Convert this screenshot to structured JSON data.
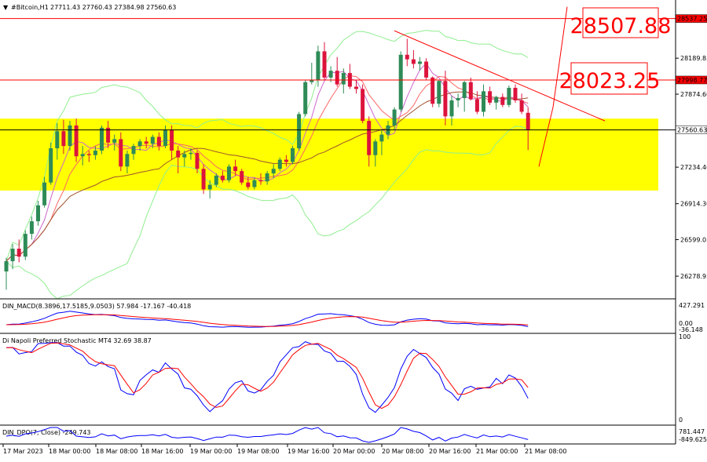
{
  "header": {
    "symbol": "#Bitcoin,H1",
    "ohlc": "27711.43 27760.43 27384.98 27560.63"
  },
  "annotations": {
    "level_high": "28507.88",
    "level_mid": "28023.25"
  },
  "price_axis": {
    "tick_labels": [
      "28189.85",
      "27874.60",
      "27234.40",
      "26914.30",
      "26599.05",
      "26278.95"
    ],
    "tags": [
      {
        "label": "28537.25",
        "price": 28537.25,
        "color": "#ff0000"
      },
      {
        "label": "27998.77",
        "price": 27998.77,
        "color": "#ff0000"
      },
      {
        "label": "27560.63",
        "price": 27560.63,
        "color": "#000000"
      }
    ]
  },
  "time_axis": {
    "tick_labels": [
      "17 Mar 2023",
      "18 Mar 00:00",
      "18 Mar 08:00",
      "18 Mar 16:00",
      "19 Mar 00:00",
      "19 Mar 08:00",
      "19 Mar 16:00",
      "20 Mar 00:00",
      "20 Mar 08:00",
      "20 Mar 16:00",
      "21 Mar 00:00",
      "21 Mar 08:00"
    ]
  },
  "indicators": {
    "macd": {
      "label": "DIN_MACD(8.3896,17.5185,9.0503) 57.984 -17.167 -40.418",
      "scale": [
        "427.291",
        "0.00",
        "-36.148"
      ]
    },
    "stochastic": {
      "label": "Di Napoli Preferred Stochastic MT4 32.69 38.87",
      "scale": [
        "100",
        "0"
      ]
    },
    "dpo": {
      "label": "DIN_DPO(7, Close) -249.743",
      "scale": [
        "781.447",
        "-849.625"
      ]
    }
  },
  "colors": {
    "up_candle": "#2e8b57",
    "down_candle": "#dc143c",
    "zone": "#ffff00",
    "bollinger": "#90ee90",
    "ma_fast": "#ff6666",
    "ma_slow": "#a0522d",
    "ma_purple": "#cc66cc",
    "resistance": "#ff0000",
    "macd_line": "#0000ff",
    "signal_line": "#ff0000"
  },
  "chart_data": {
    "type": "candlestick",
    "y_range": [
      26080,
      28700
    ],
    "zone": {
      "low": 27030,
      "high": 27660
    },
    "candles": [
      [
        26320,
        26440,
        26160,
        26410
      ],
      [
        26410,
        26560,
        26340,
        26520
      ],
      [
        26520,
        26600,
        26400,
        26450
      ],
      [
        26450,
        26680,
        26420,
        26650
      ],
      [
        26650,
        26800,
        26600,
        26760
      ],
      [
        26760,
        26940,
        26720,
        26900
      ],
      [
        26900,
        27150,
        26880,
        27100
      ],
      [
        27100,
        27450,
        27080,
        27400
      ],
      [
        27400,
        27620,
        27300,
        27550
      ],
      [
        27550,
        27650,
        27350,
        27420
      ],
      [
        27420,
        27640,
        27380,
        27600
      ],
      [
        27600,
        27660,
        27280,
        27330
      ],
      [
        27330,
        27420,
        27250,
        27350
      ],
      [
        27350,
        27380,
        27280,
        27340
      ],
      [
        27340,
        27420,
        27300,
        27380
      ],
      [
        27380,
        27600,
        27350,
        27580
      ],
      [
        27580,
        27640,
        27400,
        27450
      ],
      [
        27450,
        27520,
        27380,
        27480
      ],
      [
        27480,
        27540,
        27200,
        27240
      ],
      [
        27240,
        27380,
        27180,
        27350
      ],
      [
        27350,
        27440,
        27300,
        27420
      ],
      [
        27420,
        27480,
        27380,
        27460
      ],
      [
        27460,
        27500,
        27400,
        27440
      ],
      [
        27440,
        27520,
        27400,
        27500
      ],
      [
        27500,
        27540,
        27380,
        27420
      ],
      [
        27420,
        27600,
        27400,
        27560
      ],
      [
        27560,
        27600,
        27300,
        27380
      ],
      [
        27380,
        27420,
        27180,
        27320
      ],
      [
        27320,
        27380,
        27240,
        27350
      ],
      [
        27350,
        27400,
        27300,
        27360
      ],
      [
        27360,
        27380,
        27180,
        27220
      ],
      [
        27220,
        27260,
        27000,
        27040
      ],
      [
        27040,
        27120,
        26960,
        27080
      ],
      [
        27080,
        27180,
        27060,
        27160
      ],
      [
        27160,
        27200,
        27100,
        27120
      ],
      [
        27120,
        27260,
        27100,
        27240
      ],
      [
        27240,
        27300,
        27160,
        27200
      ],
      [
        27200,
        27220,
        27080,
        27100
      ],
      [
        27100,
        27150,
        27040,
        27060
      ],
      [
        27060,
        27140,
        27040,
        27120
      ],
      [
        27120,
        27180,
        27080,
        27110
      ],
      [
        27110,
        27200,
        27080,
        27180
      ],
      [
        27180,
        27260,
        27140,
        27220
      ],
      [
        27220,
        27320,
        27200,
        27300
      ],
      [
        27300,
        27340,
        27240,
        27280
      ],
      [
        27280,
        27420,
        27260,
        27400
      ],
      [
        27400,
        27720,
        27380,
        27700
      ],
      [
        27700,
        28000,
        27680,
        27980
      ],
      [
        27980,
        28150,
        27960,
        28000
      ],
      [
        28000,
        28300,
        27940,
        28250
      ],
      [
        28250,
        28330,
        28000,
        28020
      ],
      [
        28020,
        28120,
        27980,
        28080
      ],
      [
        28080,
        28200,
        27940,
        27960
      ],
      [
        27960,
        28100,
        27880,
        28060
      ],
      [
        28060,
        28140,
        27920,
        27940
      ],
      [
        27940,
        28000,
        27880,
        27920
      ],
      [
        27920,
        27960,
        27620,
        27640
      ],
      [
        27640,
        27680,
        27240,
        27340
      ],
      [
        27340,
        27480,
        27240,
        27460
      ],
      [
        27460,
        27560,
        27340,
        27520
      ],
      [
        27520,
        27640,
        27480,
        27600
      ],
      [
        27600,
        27760,
        27560,
        27740
      ],
      [
        27740,
        28250,
        27720,
        28220
      ],
      [
        28220,
        28360,
        28120,
        28180
      ],
      [
        28180,
        28260,
        28100,
        28140
      ],
      [
        28140,
        28200,
        28080,
        28160
      ],
      [
        28160,
        28190,
        28000,
        28020
      ],
      [
        28020,
        28030,
        27760,
        27790
      ],
      [
        27790,
        28000,
        27760,
        27990
      ],
      [
        27990,
        28080,
        27600,
        27680
      ],
      [
        27680,
        27860,
        27600,
        27820
      ],
      [
        27820,
        27880,
        27760,
        27840
      ],
      [
        27840,
        27990,
        27720,
        27980
      ],
      [
        27980,
        28020,
        27820,
        27830
      ],
      [
        27830,
        27900,
        27700,
        27720
      ],
      [
        27720,
        27960,
        27680,
        27900
      ],
      [
        27900,
        27940,
        27780,
        27800
      ],
      [
        27800,
        27860,
        27740,
        27850
      ],
      [
        27850,
        27880,
        27760,
        27780
      ],
      [
        27780,
        27950,
        27760,
        27930
      ],
      [
        27930,
        27960,
        27800,
        27820
      ],
      [
        27820,
        27880,
        27700,
        27720
      ],
      [
        27711,
        27760,
        27385,
        27561
      ]
    ]
  }
}
